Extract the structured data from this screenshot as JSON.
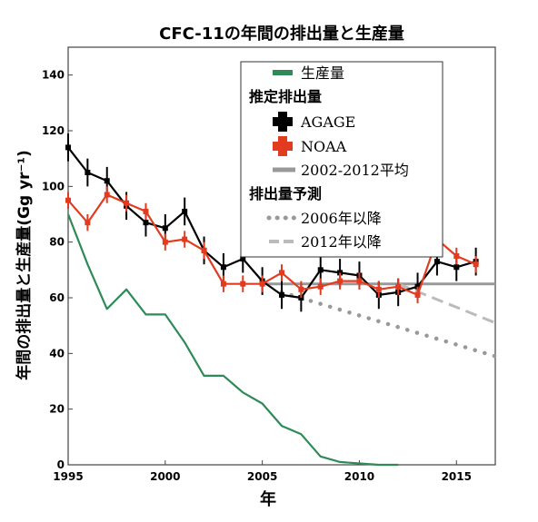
{
  "chart_data": {
    "type": "line",
    "title": "CFC-11の年間の排出量と生産量",
    "xlabel": "年",
    "ylabel": "年間の排出量と生産量(Gg yr⁻¹)",
    "xlim": [
      1995,
      2017
    ],
    "ylim": [
      0,
      150
    ],
    "xticks": [
      1995,
      2000,
      2005,
      2010,
      2015
    ],
    "yticks": [
      0,
      20,
      40,
      60,
      80,
      100,
      120,
      140
    ],
    "grid": false,
    "legend_position": "top-right",
    "series": [
      {
        "name": "生産量",
        "color": "#2e8b57",
        "x": [
          1995,
          1996,
          1997,
          1998,
          1999,
          2000,
          2001,
          2002,
          2003,
          2004,
          2005,
          2006,
          2007,
          2008,
          2009,
          2010,
          2011,
          2012
        ],
        "y": [
          90,
          72,
          56,
          63,
          54,
          54,
          44,
          32,
          32,
          26,
          22,
          14,
          11,
          3,
          1,
          0.5,
          0,
          0
        ]
      },
      {
        "name": "AGAGE",
        "color": "#000000",
        "x": [
          1995,
          1996,
          1997,
          1998,
          1999,
          2000,
          2001,
          2002,
          2003,
          2004,
          2005,
          2006,
          2007,
          2008,
          2009,
          2010,
          2011,
          2012,
          2013,
          2014,
          2015,
          2016
        ],
        "y": [
          114,
          105,
          102,
          93,
          87,
          85,
          91,
          77,
          71,
          74,
          66,
          61,
          60,
          70,
          69,
          68,
          61,
          62,
          64,
          73,
          71,
          73
        ]
      },
      {
        "name": "NOAA",
        "color": "#e23b20",
        "x": [
          1995,
          1996,
          1997,
          1998,
          1999,
          2000,
          2001,
          2002,
          2003,
          2004,
          2005,
          2006,
          2007,
          2008,
          2009,
          2010,
          2011,
          2012,
          2013,
          2014,
          2015,
          2016
        ],
        "y": [
          95,
          87,
          97,
          94,
          91,
          80,
          81,
          77,
          65,
          65,
          65,
          69,
          63,
          64,
          66,
          66,
          63,
          64,
          61,
          81,
          75,
          72
        ]
      },
      {
        "name": "2002-2012平均",
        "color": "#999999",
        "x": [
          2005,
          2017
        ],
        "y": [
          65,
          65
        ]
      },
      {
        "name": "2006年以降",
        "color": "#999999",
        "x": [
          2006,
          2017
        ],
        "y": [
          62,
          39
        ]
      },
      {
        "name": "2012年以降",
        "color": "#bbbbbb",
        "x": [
          2012,
          2017
        ],
        "y": [
          65,
          51
        ]
      }
    ],
    "legend": {
      "production_label": "生産量",
      "emissions_heading": "推定排出量",
      "agage_label": "AGAGE",
      "noaa_label": "NOAA",
      "average_label": "2002-2012平均",
      "projection_heading": "排出量予測",
      "proj2006_label": "2006年以降",
      "proj2012_label": "2012年以降"
    }
  }
}
